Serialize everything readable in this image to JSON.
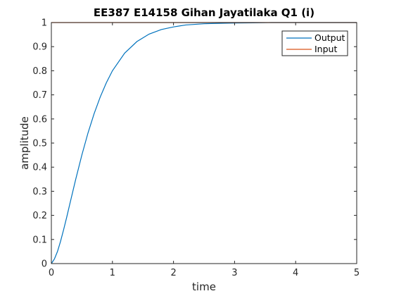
{
  "chart_data": {
    "type": "line",
    "title": "EE387 E14158 Gihan Jayatilaka Q1 (i)",
    "xlabel": "time",
    "ylabel": "amplitude",
    "xlim": [
      0,
      5
    ],
    "ylim": [
      0,
      1
    ],
    "xticks": [
      0,
      1,
      2,
      3,
      4,
      5
    ],
    "yticks": [
      0,
      0.1,
      0.2,
      0.3,
      0.4,
      0.5,
      0.6,
      0.7,
      0.8,
      0.9,
      1
    ],
    "grid": false,
    "legend_position": "top-right",
    "series": [
      {
        "name": "Output",
        "color": "#0072BD",
        "x": [
          0,
          0.05,
          0.1,
          0.15,
          0.2,
          0.25,
          0.3,
          0.4,
          0.5,
          0.6,
          0.7,
          0.8,
          0.9,
          1.0,
          1.2,
          1.4,
          1.6,
          1.8,
          2.0,
          2.2,
          2.5,
          2.8,
          3.0,
          3.3,
          3.6,
          4.0,
          4.5,
          5.0
        ],
        "y": [
          0,
          0.019,
          0.05,
          0.092,
          0.14,
          0.191,
          0.245,
          0.351,
          0.451,
          0.542,
          0.622,
          0.691,
          0.75,
          0.8,
          0.873,
          0.921,
          0.952,
          0.971,
          0.982,
          0.99,
          0.995,
          0.997,
          0.998,
          0.999,
          1.0,
          1.0,
          1.0,
          1.0
        ]
      },
      {
        "name": "Input",
        "color": "#D95319",
        "x": [
          0,
          5
        ],
        "y": [
          1,
          1
        ]
      }
    ]
  }
}
